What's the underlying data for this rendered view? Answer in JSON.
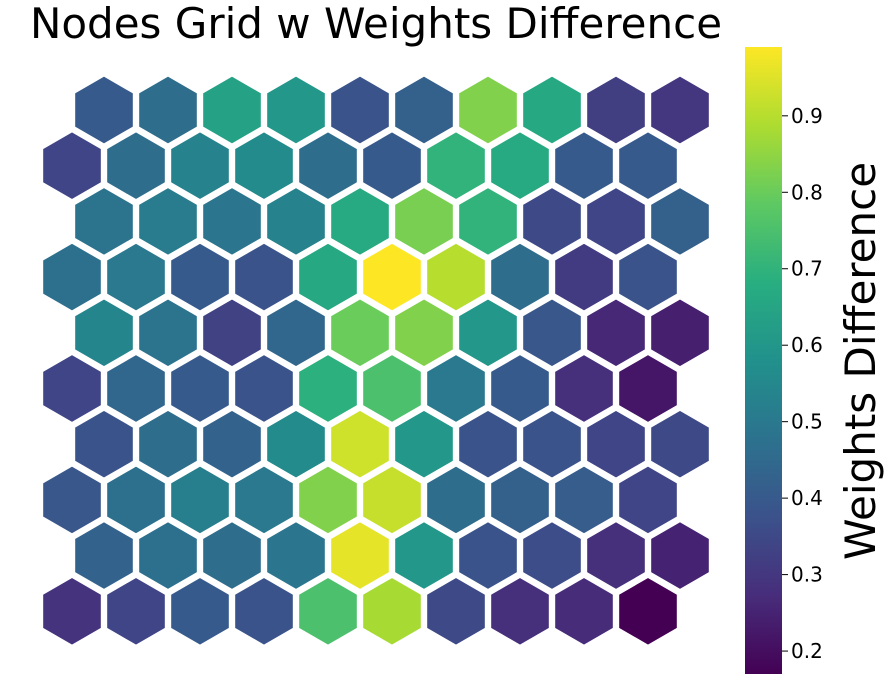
{
  "chart_data": {
    "type": "heatmap",
    "layout": "hexagonal-grid",
    "title": "Nodes Grid w Weights Difference",
    "colorbar_label": "Weights Difference",
    "colormap": "viridis",
    "value_range": [
      0.17,
      0.99
    ],
    "colorbar_ticks": [
      0.2,
      0.3,
      0.4,
      0.5,
      0.6,
      0.7,
      0.8,
      0.9
    ],
    "rows": 10,
    "cols": 10,
    "row_order": "top-to-bottom",
    "odd_rows_offset": "right",
    "values": [
      [
        0.4,
        0.46,
        0.64,
        0.6,
        0.38,
        0.42,
        0.83,
        0.66,
        0.32,
        0.3
      ],
      [
        0.34,
        0.46,
        0.53,
        0.56,
        0.46,
        0.4,
        0.7,
        0.67,
        0.4,
        0.4
      ],
      [
        0.48,
        0.51,
        0.49,
        0.53,
        0.67,
        0.82,
        0.7,
        0.35,
        0.34,
        0.42
      ],
      [
        0.47,
        0.5,
        0.4,
        0.38,
        0.66,
        0.99,
        0.9,
        0.46,
        0.31,
        0.38
      ],
      [
        0.54,
        0.48,
        0.33,
        0.44,
        0.8,
        0.83,
        0.6,
        0.39,
        0.26,
        0.24
      ],
      [
        0.34,
        0.44,
        0.4,
        0.38,
        0.69,
        0.75,
        0.5,
        0.4,
        0.28,
        0.22
      ],
      [
        0.38,
        0.46,
        0.43,
        0.56,
        0.93,
        0.6,
        0.38,
        0.38,
        0.34,
        0.35
      ],
      [
        0.39,
        0.47,
        0.52,
        0.5,
        0.83,
        0.92,
        0.46,
        0.42,
        0.41,
        0.34
      ],
      [
        0.43,
        0.47,
        0.46,
        0.49,
        0.96,
        0.6,
        0.38,
        0.36,
        0.28,
        0.25
      ],
      [
        0.29,
        0.34,
        0.4,
        0.38,
        0.75,
        0.88,
        0.35,
        0.28,
        0.27,
        0.17
      ]
    ]
  }
}
